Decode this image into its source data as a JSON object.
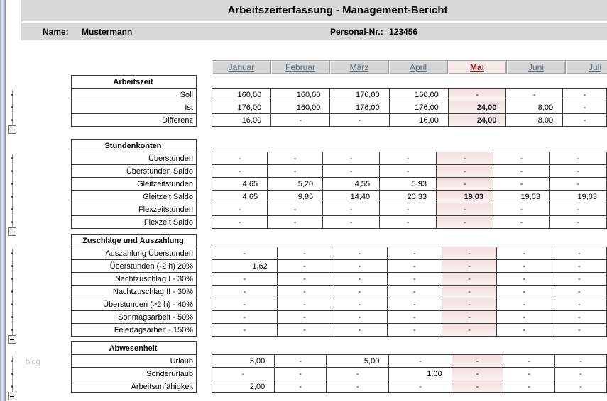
{
  "title": "Arbeitszeiterfassung - Management-Bericht",
  "header": {
    "name_label": "Name:",
    "name_value": "Mustermann",
    "personnel_label": "Personal-Nr.:",
    "personnel_value": "123456"
  },
  "watermark": "blog",
  "months": [
    "Januar",
    "Februar",
    "März",
    "April",
    "Mai",
    "Juni",
    "Juli"
  ],
  "highlight_month": "Mai",
  "highlight_month_index": 4,
  "colors": {
    "bar_bg": "#d8d8d8",
    "highlight_bg": "#f3dede",
    "highlight_header_text": "#8a2525",
    "month_text": "#5a6b7c",
    "grid_border": "#3a3a3a"
  },
  "sections": [
    {
      "header": "Arbeitszeit",
      "rows": [
        {
          "label": "Soll",
          "values": [
            "160,00",
            "160,00",
            "176,00",
            "160,00",
            "-",
            "-",
            "-"
          ]
        },
        {
          "label": "Ist",
          "values": [
            "176,00",
            "160,00",
            "176,00",
            "176,00",
            "24,00",
            "8,00",
            "-"
          ]
        },
        {
          "label": "Differenz",
          "values": [
            "16,00",
            "-",
            "-",
            "16,00",
            "24,00",
            "8,00",
            "-"
          ]
        }
      ]
    },
    {
      "header": "Stundenkonten",
      "rows": [
        {
          "label": "Überstunden",
          "values": [
            "-",
            "-",
            "-",
            "-",
            "-",
            "-",
            "-"
          ]
        },
        {
          "label": "Überstunden Saldo",
          "values": [
            "-",
            "-",
            "-",
            "-",
            "-",
            "-",
            "-"
          ]
        },
        {
          "label": "Gleitzeitstunden",
          "values": [
            "4,65",
            "5,20",
            "4,55",
            "5,93",
            "-",
            "-",
            "-"
          ]
        },
        {
          "label": "Gleitzeit Saldo",
          "values": [
            "4,65",
            "9,85",
            "14,40",
            "20,33",
            "19,03",
            "19,03",
            "19,03"
          ]
        },
        {
          "label": "Flexzeitstunden",
          "values": [
            "-",
            "-",
            "-",
            "-",
            "-",
            "-",
            "-"
          ]
        },
        {
          "label": "Flexzeit Saldo",
          "values": [
            "-",
            "-",
            "-",
            "-",
            "-",
            "-",
            "-"
          ]
        }
      ]
    },
    {
      "header": "Zuschläge und Auszahlung",
      "rows": [
        {
          "label": "Auszahlung Überstunden",
          "values": [
            "-",
            "-",
            "-",
            "-",
            "-",
            "-",
            "-"
          ]
        },
        {
          "label": "Überstunden (-2 h) 20%",
          "values": [
            "1,62",
            "-",
            "-",
            "-",
            "-",
            "-",
            "-"
          ]
        },
        {
          "label": "Nachtzuschlag I - 30%",
          "values": [
            "-",
            "-",
            "-",
            "-",
            "-",
            "-",
            "-"
          ]
        },
        {
          "label": "Nachtzuschlag II - 30%",
          "values": [
            "-",
            "-",
            "-",
            "-",
            "-",
            "-",
            "-"
          ]
        },
        {
          "label": "Überstunden (>2 h) - 40%",
          "values": [
            "-",
            "-",
            "-",
            "-",
            "-",
            "-",
            "-"
          ]
        },
        {
          "label": "Sonntagsarbeit - 50%",
          "values": [
            "-",
            "-",
            "-",
            "-",
            "-",
            "-",
            "-"
          ]
        },
        {
          "label": "Feiertagsarbeit - 150%",
          "values": [
            "-",
            "-",
            "-",
            "-",
            "-",
            "-",
            "-"
          ]
        }
      ]
    },
    {
      "header": "Abwesenheit",
      "rows": [
        {
          "label": "Urlaub",
          "values": [
            "5,00",
            "-",
            "5,00",
            "-",
            "-",
            "-",
            "-"
          ]
        },
        {
          "label": "Sonderurlaub",
          "values": [
            "-",
            "-",
            "-",
            "1,00",
            "-",
            "-",
            "-"
          ]
        },
        {
          "label": "Arbeitsunfähigkeit",
          "values": [
            "2,00",
            "-",
            "-",
            "-",
            "-",
            "-",
            "-"
          ]
        }
      ]
    }
  ]
}
